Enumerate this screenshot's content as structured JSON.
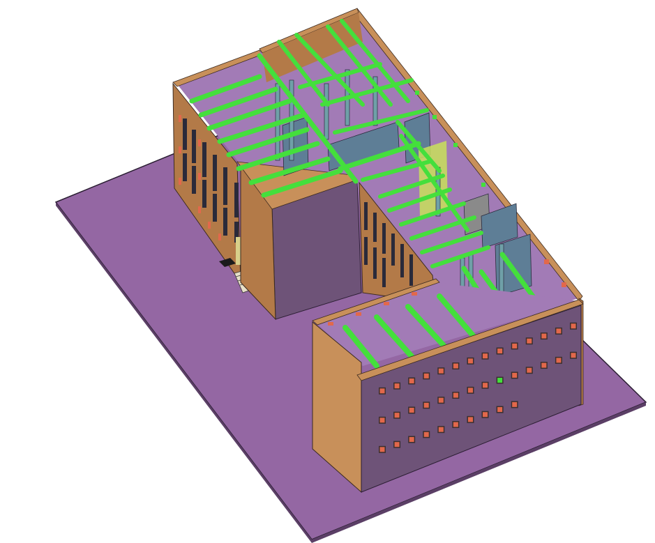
{
  "scene": {
    "subject": "isometric-building-model",
    "colors": {
      "background": "#ffffff",
      "ground": "#9467a3",
      "ground_edge": "#2b1e33",
      "wall_top": "#c8905a",
      "wall_side": "#b37a48",
      "wall_dark": "#6e5378",
      "floor": "#a27bb6",
      "beam": "#44df3c",
      "beam_shadow": "#2da22a",
      "glass": "#5e7e96",
      "window": "#e2684b",
      "window_frame": "#3b2f2f",
      "stair": "#e8e0c8"
    }
  }
}
